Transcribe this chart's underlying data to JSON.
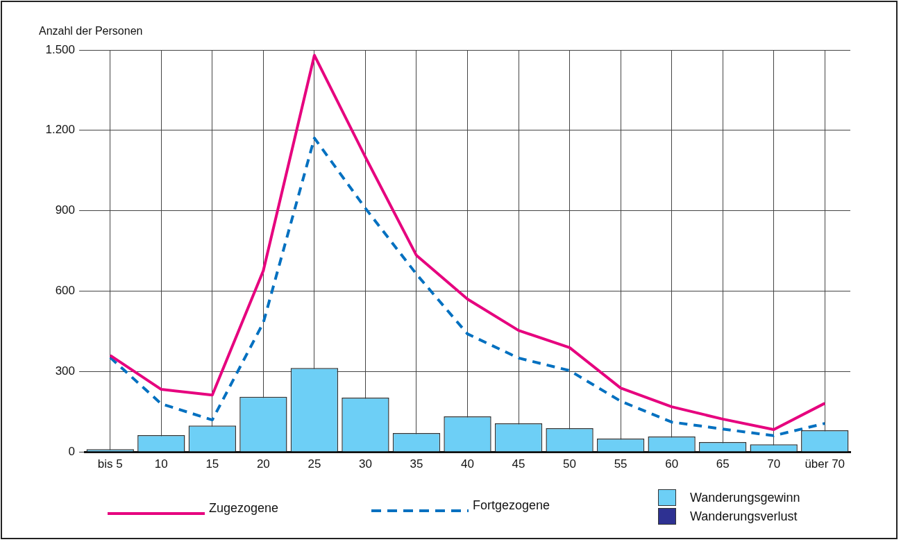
{
  "chart_data": {
    "type": "bar",
    "ylabel": "Anzahl der Personen",
    "categories": [
      "bis 5",
      "10",
      "15",
      "20",
      "25",
      "30",
      "35",
      "40",
      "45",
      "50",
      "55",
      "60",
      "65",
      "70",
      "über 70"
    ],
    "series": [
      {
        "name": "Zugezogene",
        "type": "line",
        "color": "#e6007e",
        "line_style": "solid",
        "values": [
          360,
          233,
          212,
          676,
          1480,
          1100,
          733,
          570,
          453,
          389,
          238,
          168,
          122,
          83,
          181
        ]
      },
      {
        "name": "Fortgezogene",
        "type": "line",
        "color": "#0070c0",
        "line_style": "dashed",
        "values": [
          352,
          179,
          119,
          482,
          1171,
          909,
          663,
          440,
          350,
          303,
          189,
          111,
          85,
          60,
          106
        ]
      },
      {
        "name": "Wanderungsgewinn",
        "color": "#6dcff6",
        "values": [
          10,
          62,
          98,
          205,
          313,
          202,
          70,
          132,
          106,
          88,
          49,
          57,
          36,
          28,
          80
        ]
      },
      {
        "name": "Wanderungsverlust",
        "color": "#2e3192",
        "values": [
          null,
          null,
          null,
          null,
          null,
          null,
          null,
          null,
          null,
          null,
          null,
          null,
          null,
          null,
          null
        ]
      }
    ],
    "ylim": [
      0,
      1500
    ],
    "yticks": [
      0,
      300,
      600,
      900,
      {
        "value": 1200,
        "label": "1.200"
      },
      {
        "value": 1500,
        "label": "1.500"
      }
    ],
    "grid": true,
    "legend": "bottom",
    "marker": "none"
  }
}
